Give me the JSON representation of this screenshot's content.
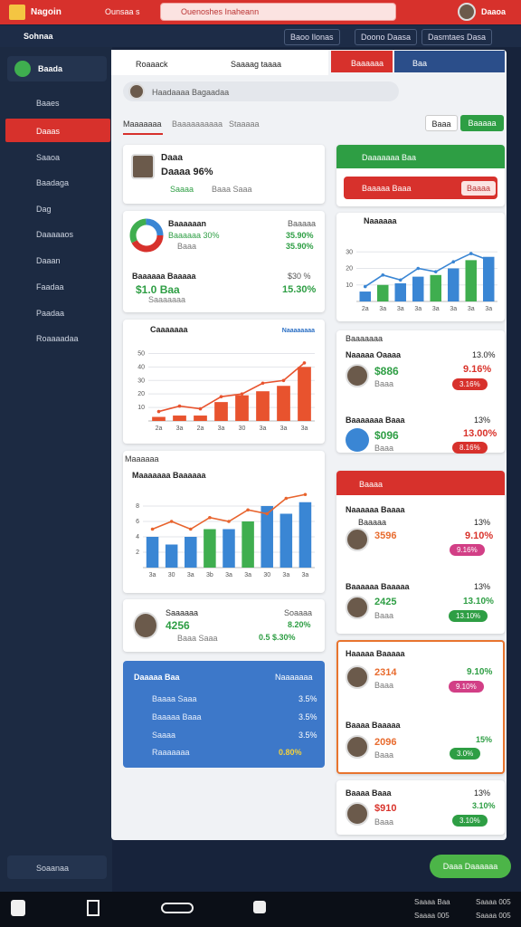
{
  "header": {
    "logo": "Nagoin",
    "menu": "Ounsaa s",
    "search": "Ouenoshes Inaheann",
    "user": "Daaoa"
  },
  "subbar": {
    "title": "Sohnaa",
    "links": [
      "Baoo Ilonas",
      "Doono Daasa",
      "Dasmtaes Dasa"
    ]
  },
  "sidebar": {
    "brand": "Baada",
    "items": [
      "Baaes",
      "Daaas",
      "Saaoa",
      "Baadaga",
      "Dag",
      "Daaaaaos",
      "Daaan",
      "Faadaa",
      "Paadaa",
      "Roaaaadaa"
    ],
    "footer": "Soaanaa"
  },
  "tabs": {
    "left": "Roaaack",
    "right": "Saaaag taaaa",
    "red": "Baaaaaa",
    "blue": "Baa"
  },
  "search_row": "Haadaaaa Bagaadaa",
  "subtabs": [
    "Maaaaaaa",
    "Baaaaaaaaaa",
    "Staaaaa"
  ],
  "buttons": [
    "Baaa",
    "Baaaaa"
  ],
  "profile": {
    "name": "Daaa",
    "value": "Daaaa 96%",
    "tags": [
      "Saaaa",
      "Baaa Saaa"
    ]
  },
  "donut_card": {
    "title": "Baaaaaan",
    "subtitle": "Baaaaaa 30%",
    "note": "Baaa",
    "right": [
      "Baaaaa",
      "35.90%",
      "35.90%"
    ],
    "row_title": "Baaaaaa Baaaaa",
    "row_value": "$1.0 Baa",
    "row_note": "Saaaaaaa",
    "row_right": [
      "$30 %",
      "15.30%"
    ]
  },
  "summary_card": {
    "name": "Saaaaaa",
    "value": "4256",
    "note": "Baaa Saaa",
    "right": [
      "Soaaaa",
      "8.20%",
      "0.5 $.30%"
    ]
  },
  "blue_card": {
    "title": "Daaaaa Baa",
    "right": "Naaaaaaa",
    "rows": [
      [
        "Baaaa Saaa",
        "3.5%"
      ],
      [
        "Baaaaa Baaa",
        "3.5%"
      ],
      [
        "Saaaa",
        "3.5%"
      ],
      [
        "Raaaaaaa",
        "0.80%"
      ]
    ]
  },
  "section_label": "Maaaaaa",
  "alert_card": {
    "title": "Daaaaaaa Baa",
    "text": "Baaaaa Baaa",
    "button": "Baaaa"
  },
  "list_card": {
    "title": "Baaaaaaa",
    "items": [
      {
        "name": "Naaaaa Oaaaa",
        "pct": "13.0%",
        "amount": "$886",
        "note": "Baaa",
        "change": "9.16%",
        "badge": "3.16%"
      },
      {
        "name": "Baaaaaaa Baaa",
        "pct": "13%",
        "amount": "$096",
        "note": "Baaa",
        "change": "13.00%",
        "badge": "8.16%"
      }
    ]
  },
  "red_card": {
    "title": "Baaaa",
    "items": [
      {
        "name": "Naaaaaa Baaaa",
        "sub": "Baaaaa",
        "pct": "13%",
        "amount": "3596",
        "change": "9.10%",
        "badge": "9.16%"
      },
      {
        "name": "Baaaaaa Baaaaa",
        "sub": "Baaa",
        "pct": "13%",
        "amount": "2425",
        "change": "13.10%",
        "badge": "13.10%"
      }
    ]
  },
  "orange_card": {
    "title": "Haaaaa Baaaaa",
    "items": [
      {
        "amount": "2314",
        "change": "9.10%",
        "badge": "9.10%",
        "note": "Baaa"
      },
      {
        "name": "Baaaa Baaaaa",
        "amount": "2096",
        "change": "15%",
        "badge": "3.0%",
        "note": "Baaa"
      }
    ]
  },
  "last_card": {
    "name": "Baaaa Baaa",
    "amount": "$910",
    "note": "Baaa",
    "pct": "13%",
    "change": "3.10%",
    "badge": "3.10%"
  },
  "action": "Daaa Daaaaaa",
  "taskbar": {
    "right": [
      "Saaaa Baa",
      "Saaaa 005",
      "Saaaa 005",
      "Saaaa 005"
    ]
  },
  "chart_data": [
    {
      "type": "bar",
      "title": "Caaaaaaa",
      "categories": [
        "2a",
        "3a",
        "2a",
        "3a",
        "30",
        "3a",
        "3a",
        "3a"
      ],
      "ylim": [
        0,
        55
      ],
      "yticks": [
        10,
        20,
        30,
        40,
        50
      ],
      "series": [
        {
          "name": "Naaaaaaaa",
          "type": "bar",
          "color": "#e8532e",
          "values": [
            3,
            4,
            4,
            14,
            19,
            22,
            26,
            40
          ]
        },
        {
          "type": "line",
          "color": "#e8532e",
          "values": [
            7,
            11,
            9,
            18,
            20,
            28,
            30,
            43
          ]
        }
      ]
    },
    {
      "type": "bar",
      "title": "Maaaaaaa Baaaaaa",
      "categories": [
        "3a",
        "30",
        "3a",
        "3b",
        "3a",
        "3a",
        "30",
        "3a",
        "3a"
      ],
      "ylim": [
        0,
        10
      ],
      "yticks": [
        2,
        4,
        6,
        8
      ],
      "series": [
        {
          "type": "bar",
          "colors": [
            "#3a86d4",
            "#3a86d4",
            "#3a86d4",
            "#3fae4f",
            "#3a86d4",
            "#3fae4f",
            "#3a86d4",
            "#3a86d4",
            "#3a86d4"
          ],
          "values": [
            4,
            3,
            4,
            5,
            5,
            6,
            8,
            7,
            8.5
          ]
        },
        {
          "type": "line",
          "color": "#e8642e",
          "values": [
            5,
            6,
            5,
            6.5,
            6,
            7.5,
            7,
            9,
            9.5
          ]
        }
      ]
    },
    {
      "type": "bar",
      "title": "Naaaaaa",
      "categories": [
        "2a",
        "3a",
        "3a",
        "3a",
        "3a",
        "3a",
        "3a",
        "3a"
      ],
      "ylim": [
        0,
        40
      ],
      "yticks": [
        10,
        20,
        30
      ],
      "series": [
        {
          "type": "bar",
          "colors": [
            "#3a86d4",
            "#3fae4f",
            "#3a86d4",
            "#3a86d4",
            "#3fae4f",
            "#3a86d4",
            "#3fae4f",
            "#3a86d4"
          ],
          "values": [
            6,
            10,
            11,
            15,
            16,
            20,
            25,
            27
          ]
        },
        {
          "type": "line",
          "color": "#3a86d4",
          "values": [
            9,
            16,
            13,
            20,
            18,
            24,
            29,
            25
          ]
        }
      ]
    }
  ]
}
